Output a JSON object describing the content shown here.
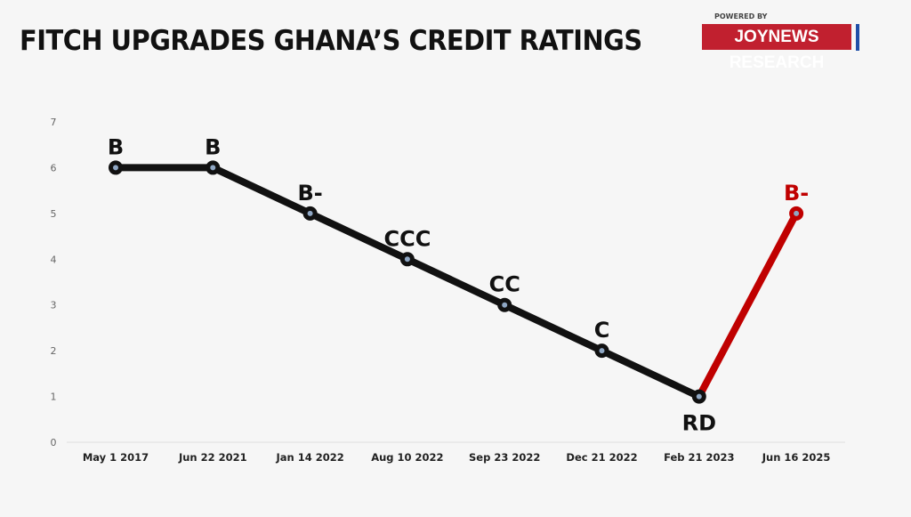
{
  "header": {
    "title": "FITCH UPGRADES GHANA’S CREDIT RATINGS",
    "powered_by": "POWERED BY",
    "brand": "JOYNEWS RESEARCH"
  },
  "colors": {
    "line": "#111111",
    "highlight": "#c00000",
    "marker_center": "#8fa7c4",
    "brand": "#c1202f",
    "brand_bar": "#1f4fa8"
  },
  "chart_data": {
    "type": "line",
    "title": "FITCH UPGRADES GHANA’S CREDIT RATINGS",
    "categories": [
      "May 1 2017",
      "Jun 22 2021",
      "Jan 14 2022",
      "Aug 10 2022",
      "Sep 23 2022",
      "Dec 21 2022",
      "Feb 21 2023",
      "Jun 16 2025"
    ],
    "values": [
      6,
      6,
      5,
      4,
      3,
      2,
      1,
      5
    ],
    "data_labels": [
      "B",
      "B",
      "B-",
      "CCC",
      "CC",
      "C",
      "RD",
      "B-"
    ],
    "highlighted_segment": [
      "Feb 21 2023",
      "Jun 16 2025"
    ],
    "ylim": [
      0,
      7
    ],
    "yticks": [
      0,
      1,
      2,
      3,
      4,
      5,
      6,
      7
    ],
    "grid": false,
    "legend": "none"
  }
}
